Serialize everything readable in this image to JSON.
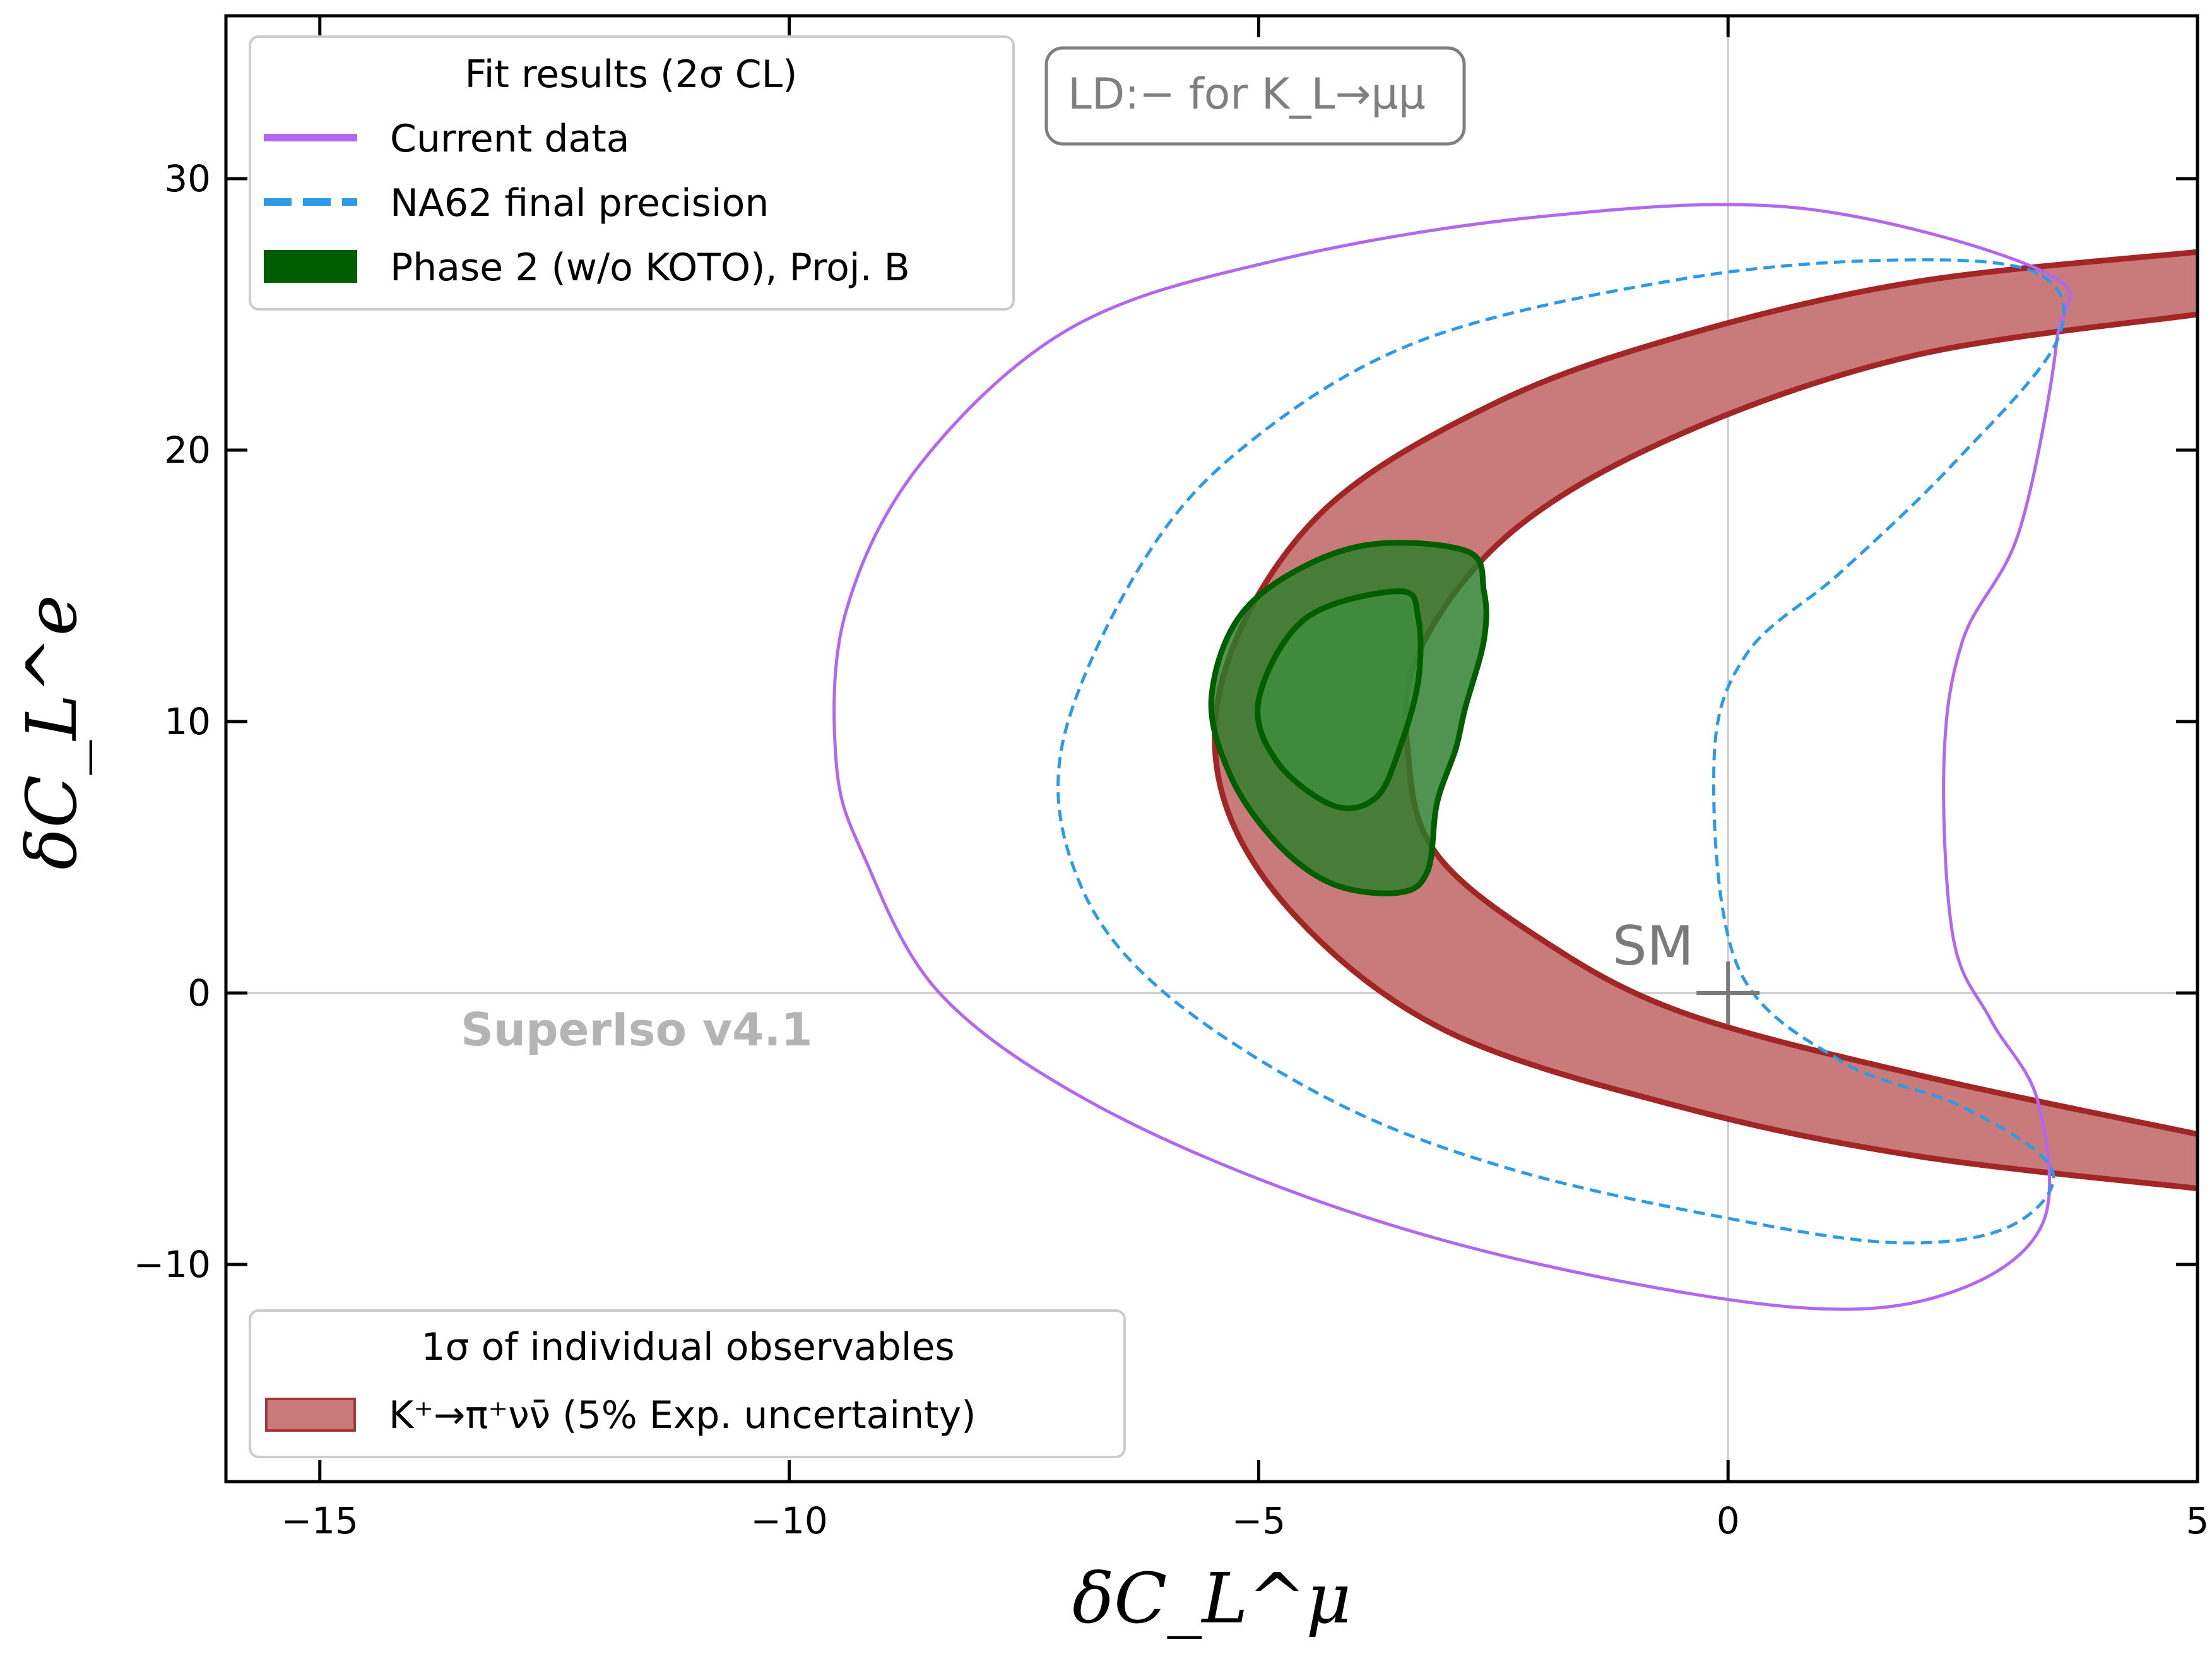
{
  "chart_data": {
    "type": "contour",
    "xlabel": "δC_L^μ",
    "ylabel": "δC_L^e",
    "xlim": [
      -16,
      5
    ],
    "ylim": [
      -18,
      36
    ],
    "xticks": [
      -15,
      -10,
      -5,
      0,
      5
    ],
    "yticks": [
      -10,
      0,
      10,
      20,
      30
    ],
    "xtick_labels": [
      "−15",
      "−10",
      "−5",
      "0",
      "5"
    ],
    "ytick_labels": [
      "−10",
      "0",
      "10",
      "20",
      "30"
    ],
    "reference_lines": {
      "x": 0,
      "y": 0
    },
    "sm_point": {
      "x": 0,
      "y": 0,
      "label": "SM"
    },
    "watermark": "SuperIso v4.1",
    "annotation_box": "LD:− for K_L→μμ",
    "legend_fit": {
      "title": "Fit results (2σ CL)",
      "entries": [
        {
          "label": "Current data",
          "style": "solid",
          "color": "#b366f0"
        },
        {
          "label": "NA62 final precision",
          "style": "dashed",
          "color": "#2b9be8"
        },
        {
          "label": "Phase 2 (w/o KOTO), Proj. B",
          "style": "filled",
          "color": "#005e00"
        }
      ]
    },
    "legend_obs": {
      "title": "1σ of individual observables",
      "entries": [
        {
          "label": "K⁺→π⁺νν̄ (5% Exp. uncertainty)",
          "style": "band",
          "color": "#c97b7b"
        }
      ]
    },
    "series": [
      {
        "name": "Current data",
        "type": "line",
        "closed": true,
        "color": "#b366f0",
        "points": [
          [
            3.4,
            26.5
          ],
          [
            0.8,
            28.9
          ],
          [
            -2,
            28.6
          ],
          [
            -4.8,
            27
          ],
          [
            -7,
            24.5
          ],
          [
            -8.6,
            19.5
          ],
          [
            -9.4,
            14
          ],
          [
            -9.5,
            8.5
          ],
          [
            -9.2,
            5
          ],
          [
            -8.4,
            0
          ],
          [
            -6.8,
            -4
          ],
          [
            -4.5,
            -7.5
          ],
          [
            -2,
            -10
          ],
          [
            0.8,
            -11.6
          ],
          [
            2.4,
            -11
          ],
          [
            3.35,
            -8.5
          ],
          [
            3.3,
            -4
          ],
          [
            2.8,
            -1
          ],
          [
            2.4,
            2
          ],
          [
            2.3,
            8.5
          ],
          [
            2.5,
            13
          ],
          [
            3.1,
            17
          ],
          [
            3.5,
            24
          ]
        ]
      },
      {
        "name": "NA62 final precision",
        "type": "line",
        "closed": true,
        "dashed": true,
        "color": "#2b9be8",
        "points": [
          [
            3.3,
            26.5
          ],
          [
            1.8,
            27
          ],
          [
            -0.5,
            26.3
          ],
          [
            -3.3,
            24
          ],
          [
            -5.2,
            20
          ],
          [
            -6.3,
            15.5
          ],
          [
            -7.1,
            9
          ],
          [
            -6.9,
            4
          ],
          [
            -6,
            0
          ],
          [
            -4.2,
            -4
          ],
          [
            -2.3,
            -6.5
          ],
          [
            0,
            -8.3
          ],
          [
            1.8,
            -9.2
          ],
          [
            3.0,
            -8.6
          ],
          [
            3.45,
            -6.5
          ],
          [
            2.5,
            -4.2
          ],
          [
            1.2,
            -2.5
          ],
          [
            0.1,
            1
          ],
          [
            -0.15,
            8.5
          ],
          [
            0.2,
            12.5
          ],
          [
            1.2,
            15.5
          ],
          [
            2.4,
            19.5
          ],
          [
            3.5,
            24
          ]
        ]
      },
      {
        "name": "Phase 2 outer (2σ)",
        "type": "area",
        "color": "#2b7d2b",
        "points": [
          [
            -2.6,
            14.8
          ],
          [
            -2.8,
            16.3
          ],
          [
            -4,
            16.4
          ],
          [
            -5.1,
            14.3
          ],
          [
            -5.5,
            11
          ],
          [
            -5.3,
            8
          ],
          [
            -4.8,
            5.5
          ],
          [
            -4.2,
            4
          ],
          [
            -3.5,
            3.7
          ],
          [
            -3.2,
            4.5
          ],
          [
            -3.1,
            7
          ],
          [
            -2.9,
            9
          ],
          [
            -2.8,
            10.5
          ],
          [
            -2.6,
            13
          ]
        ]
      },
      {
        "name": "Phase 2 inner (1σ)",
        "type": "area",
        "color": "#3e8e3e",
        "points": [
          [
            -3.3,
            13.8
          ],
          [
            -3.5,
            14.8
          ],
          [
            -4.5,
            13.8
          ],
          [
            -5.0,
            10.8
          ],
          [
            -4.8,
            8.5
          ],
          [
            -4.2,
            6.9
          ],
          [
            -3.75,
            7.2
          ],
          [
            -3.5,
            9
          ],
          [
            -3.3,
            11.5
          ]
        ]
      },
      {
        "name": "K⁺→π⁺νν̄ band",
        "type": "band",
        "color": "#c97b7b",
        "outer": [
          [
            5,
            27.3
          ],
          [
            2,
            26.2
          ],
          [
            -0.5,
            24.2
          ],
          [
            -2.5,
            21.7
          ],
          [
            -4.3,
            17.8
          ],
          [
            -5.3,
            12.5
          ],
          [
            -5.4,
            7.5
          ],
          [
            -4.6,
            2.8
          ],
          [
            -3,
            -1.4
          ],
          [
            -0.5,
            -4.2
          ],
          [
            2,
            -6
          ],
          [
            5,
            -7.2
          ]
        ],
        "inner": [
          [
            5,
            25
          ],
          [
            2,
            23.5
          ],
          [
            -0.5,
            20.6
          ],
          [
            -2.3,
            17
          ],
          [
            -3.3,
            12.5
          ],
          [
            -3.4,
            8.5
          ],
          [
            -3.1,
            5.1
          ],
          [
            -2,
            2
          ],
          [
            -0.5,
            -0.7
          ],
          [
            2,
            -3
          ],
          [
            5,
            -5.2
          ]
        ]
      }
    ]
  }
}
